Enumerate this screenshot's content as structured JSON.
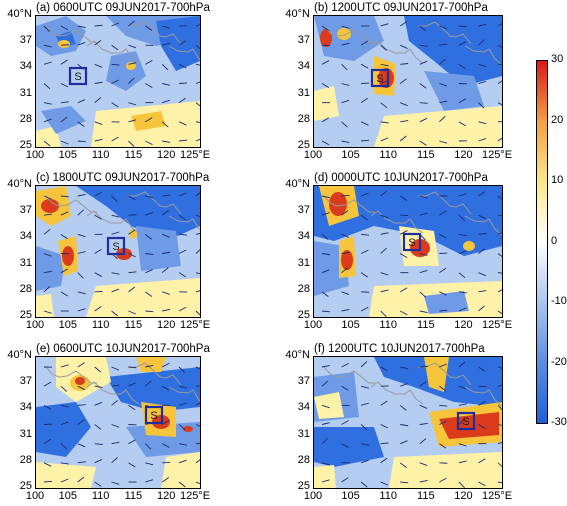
{
  "panels": [
    {
      "title": "(a) 0600UTC 09JUN2017-700hPa",
      "marker": "S"
    },
    {
      "title": "(b) 1200UTC 09JUN2017-700hPa",
      "marker": "S"
    },
    {
      "title": "(c) 1800UTC 09JUN2017-700hPa",
      "marker": "S"
    },
    {
      "title": "(d) 0000UTC 10JUN2017-700hPa",
      "marker": "S"
    },
    {
      "title": "(e) 0600UTC 10JUN2017-700hPa",
      "marker": "S"
    },
    {
      "title": "(f) 1200UTC 10JUN2017-700hPa",
      "marker": "S"
    }
  ],
  "y_ticks": [
    "40°N",
    "37",
    "34",
    "31",
    "28",
    "25"
  ],
  "x_ticks": [
    "100",
    "105",
    "110",
    "115",
    "120",
    "125°E"
  ],
  "colorbar": {
    "ticks": [
      "30",
      "20",
      "10",
      "0",
      "-10",
      "-20",
      "-30"
    ],
    "colors": [
      "#d7191c",
      "#f4a143",
      "#fde68a",
      "#ffffff",
      "#a9c5ef",
      "#5b8ee0",
      "#1f5fd8"
    ]
  },
  "colors": {
    "base": "#b5cdf0",
    "strong_neg": "#2f6fe0",
    "mid_neg": "#6f9ae6",
    "weak_pos": "#fdf2a8",
    "mid_pos": "#f7c53c",
    "strong_pos": "#d93b1c",
    "box": "#1f2e9c",
    "coast": "#9a9a9a"
  }
}
